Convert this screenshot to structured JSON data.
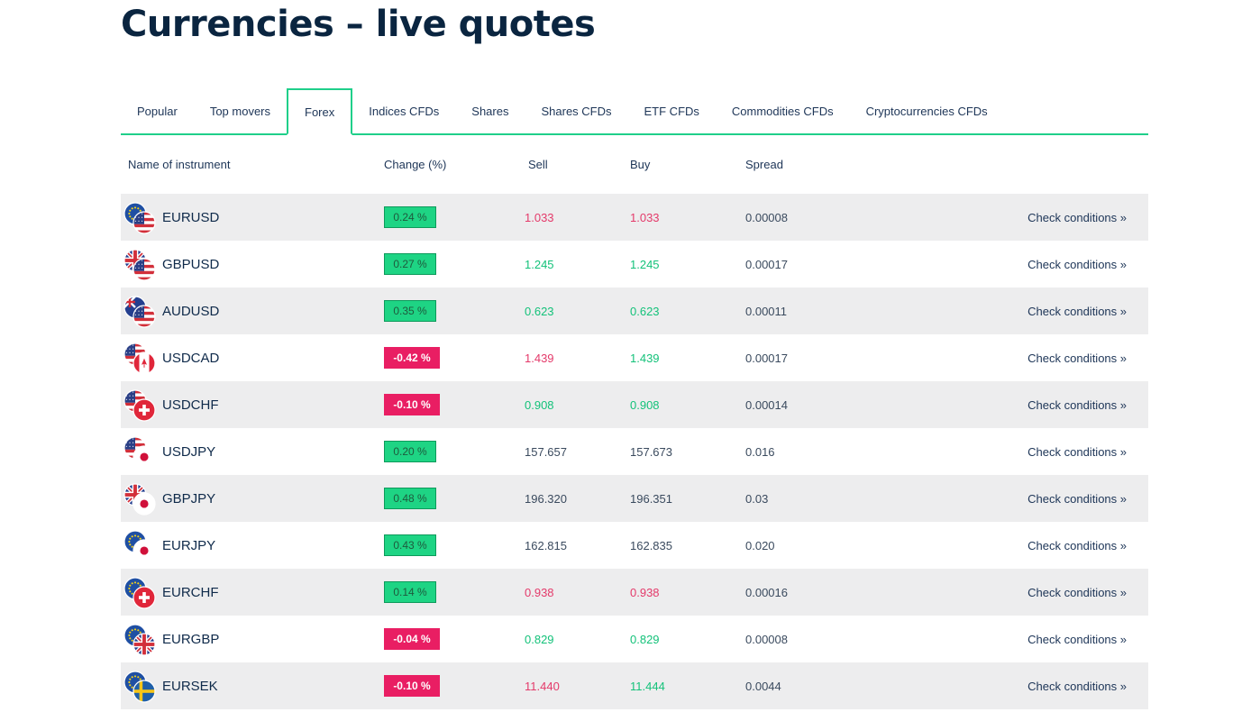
{
  "page_title": "Currencies – live quotes",
  "tabs": [
    {
      "label": "Popular",
      "active": false
    },
    {
      "label": "Top movers",
      "active": false
    },
    {
      "label": "Forex",
      "active": true
    },
    {
      "label": "Indices CFDs",
      "active": false
    },
    {
      "label": "Shares",
      "active": false
    },
    {
      "label": "Shares CFDs",
      "active": false
    },
    {
      "label": "ETF CFDs",
      "active": false
    },
    {
      "label": "Commodities CFDs",
      "active": false
    },
    {
      "label": "Cryptocurrencies CFDs",
      "active": false
    }
  ],
  "table": {
    "headers": {
      "name": "Name of instrument",
      "change": "Change (%)",
      "sell": "Sell",
      "buy": "Buy",
      "spread": "Spread"
    },
    "link_label": "Check conditions »",
    "rows": [
      {
        "name": "EURUSD",
        "change": "0.24 %",
        "direction": "up",
        "sell": "1.033",
        "sell_color": "red",
        "buy": "1.033",
        "buy_color": "red",
        "spread": "0.00008",
        "flags": [
          "eu",
          "us"
        ]
      },
      {
        "name": "GBPUSD",
        "change": "0.27 %",
        "direction": "up",
        "sell": "1.245",
        "sell_color": "green",
        "buy": "1.245",
        "buy_color": "green",
        "spread": "0.00017",
        "flags": [
          "gb",
          "us"
        ]
      },
      {
        "name": "AUDUSD",
        "change": "0.35 %",
        "direction": "up",
        "sell": "0.623",
        "sell_color": "green",
        "buy": "0.623",
        "buy_color": "green",
        "spread": "0.00011",
        "flags": [
          "au",
          "us"
        ]
      },
      {
        "name": "USDCAD",
        "change": "-0.42 %",
        "direction": "down",
        "sell": "1.439",
        "sell_color": "red",
        "buy": "1.439",
        "buy_color": "green",
        "spread": "0.00017",
        "flags": [
          "us",
          "ca"
        ]
      },
      {
        "name": "USDCHF",
        "change": "-0.10 %",
        "direction": "down",
        "sell": "0.908",
        "sell_color": "green",
        "buy": "0.908",
        "buy_color": "green",
        "spread": "0.00014",
        "flags": [
          "us",
          "ch"
        ]
      },
      {
        "name": "USDJPY",
        "change": "0.20 %",
        "direction": "up",
        "sell": "157.657",
        "sell_color": "neutral",
        "buy": "157.673",
        "buy_color": "neutral",
        "spread": "0.016",
        "flags": [
          "us",
          "jp"
        ]
      },
      {
        "name": "GBPJPY",
        "change": "0.48 %",
        "direction": "up",
        "sell": "196.320",
        "sell_color": "neutral",
        "buy": "196.351",
        "buy_color": "neutral",
        "spread": "0.03",
        "flags": [
          "gb",
          "jp"
        ]
      },
      {
        "name": "EURJPY",
        "change": "0.43 %",
        "direction": "up",
        "sell": "162.815",
        "sell_color": "neutral",
        "buy": "162.835",
        "buy_color": "neutral",
        "spread": "0.020",
        "flags": [
          "eu",
          "jp"
        ]
      },
      {
        "name": "EURCHF",
        "change": "0.14 %",
        "direction": "up",
        "sell": "0.938",
        "sell_color": "red",
        "buy": "0.938",
        "buy_color": "red",
        "spread": "0.00016",
        "flags": [
          "eu",
          "ch"
        ]
      },
      {
        "name": "EURGBP",
        "change": "-0.04 %",
        "direction": "down",
        "sell": "0.829",
        "sell_color": "green",
        "buy": "0.829",
        "buy_color": "green",
        "spread": "0.00008",
        "flags": [
          "eu",
          "gb"
        ]
      },
      {
        "name": "EURSEK",
        "change": "-0.10 %",
        "direction": "down",
        "sell": "11.440",
        "sell_color": "red",
        "buy": "11.444",
        "buy_color": "green",
        "spread": "0.0044",
        "flags": [
          "eu",
          "se"
        ]
      }
    ]
  },
  "colors": {
    "accent": "#1fcf8a",
    "up_badge": "#1ed484",
    "down_badge": "#e91e63",
    "price_red": "#e43a6a",
    "price_green": "#14c27a",
    "row_shade": "#ededee"
  }
}
